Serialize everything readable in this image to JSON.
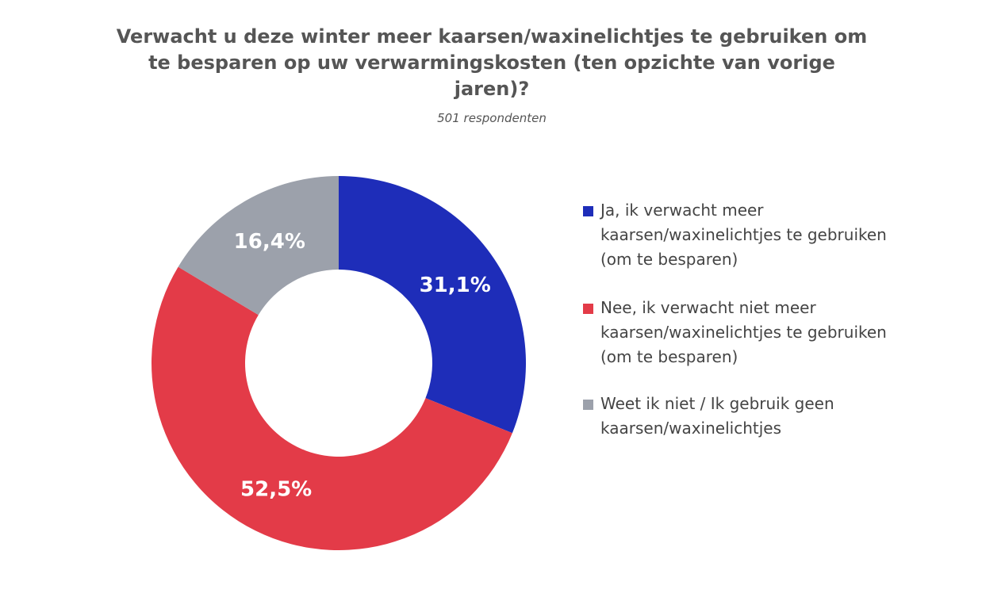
{
  "chart_data": {
    "type": "pie",
    "donut": true,
    "title": "Verwacht u deze winter meer kaarsen/waxinelichtjes te gebruiken om te besparen op uw verwarmingskosten (ten opzichte van vorige jaren)?",
    "subtitle": "501 respondenten",
    "legend_position": "right",
    "slices": [
      {
        "label": "Ja, ik verwacht meer kaarsen/waxinelichtjes te gebruiken (om te besparen)",
        "value": 31.1,
        "value_label": "31,1%",
        "color": "#1E2DB9"
      },
      {
        "label": "Nee, ik verwacht niet meer kaarsen/waxinelichtjes te gebruiken (om te besparen)",
        "value": 52.5,
        "value_label": "52,5%",
        "color": "#E33B48"
      },
      {
        "label": "Weet ik niet / Ik gebruik geen kaarsen/waxinelichtjes",
        "value": 16.4,
        "value_label": "16,4%",
        "color": "#9CA1AB"
      }
    ]
  }
}
